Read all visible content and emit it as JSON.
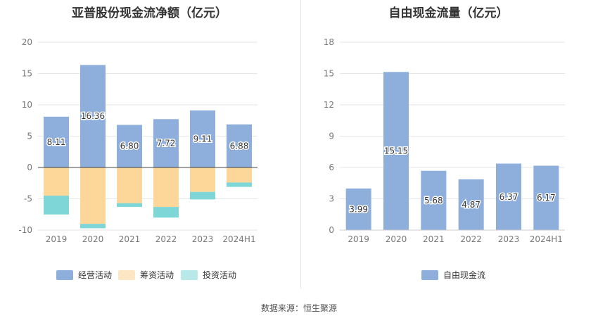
{
  "charts": {
    "left_title": "亚普股份现金流净额（亿元）",
    "right_title": "自由现金流量（亿元）"
  },
  "source": "数据来源：恒生聚源",
  "chart_data": [
    {
      "type": "bar",
      "stacked": true,
      "title": "亚普股份现金流净额（亿元）",
      "categories": [
        "2019",
        "2020",
        "2021",
        "2022",
        "2023",
        "2024H1"
      ],
      "ylim": [
        -10,
        20
      ],
      "yticks": [
        -10,
        -5,
        0,
        5,
        10,
        15,
        20
      ],
      "grid": true,
      "legend_position": "bottom",
      "series": [
        {
          "name": "经营活动",
          "color": "#8eaedc",
          "values": [
            8.11,
            16.36,
            6.8,
            7.72,
            9.11,
            6.88
          ],
          "labels": [
            "8.11",
            "16.36",
            "6.80",
            "7.72",
            "9.11",
            "6.88"
          ]
        },
        {
          "name": "筹资活动",
          "color": "#fdd79a",
          "legend_color": "#fde6c3",
          "values": [
            -4.5,
            -9.0,
            -5.7,
            -6.3,
            -3.9,
            -2.4
          ]
        },
        {
          "name": "投资活动",
          "color": "#7fd6d6",
          "legend_color": "#b9e8e8",
          "values": [
            -3.0,
            -0.7,
            -0.6,
            -1.7,
            -1.2,
            -0.7
          ]
        }
      ]
    },
    {
      "type": "bar",
      "title": "自由现金流量（亿元）",
      "categories": [
        "2019",
        "2020",
        "2021",
        "2022",
        "2023",
        "2024H1"
      ],
      "ylim": [
        0,
        18
      ],
      "yticks": [
        0,
        3,
        6,
        9,
        12,
        15,
        18
      ],
      "grid": true,
      "legend_position": "bottom",
      "series": [
        {
          "name": "自由现金流",
          "color": "#8eaedc",
          "values": [
            3.99,
            15.15,
            5.68,
            4.87,
            6.37,
            6.17
          ],
          "labels": [
            "3.99",
            "15.15",
            "5.68",
            "4.87",
            "6.37",
            "6.17"
          ]
        }
      ]
    }
  ]
}
